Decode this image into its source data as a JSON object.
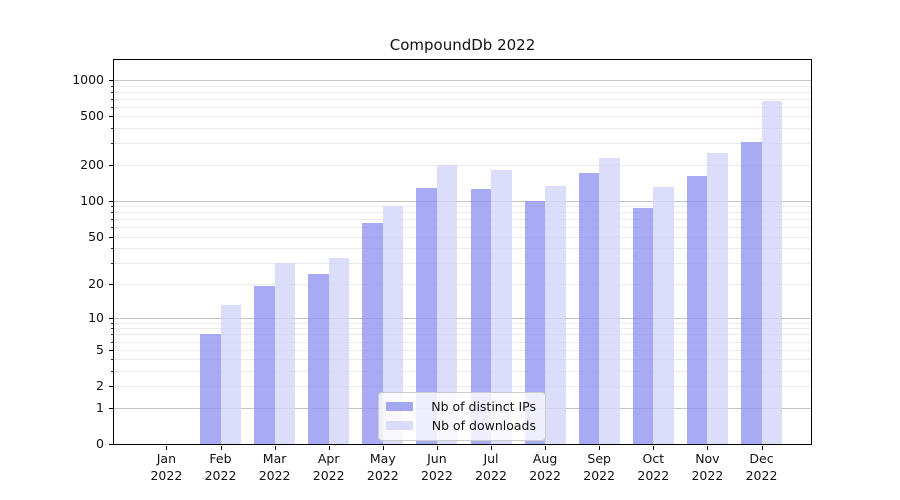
{
  "title": "CompoundDb 2022",
  "colors": {
    "distinct_ips_bar": "rgba(146,150,240,0.8)",
    "downloads_bar": "rgba(211,213,250,0.8)",
    "distinct_ips_hex": "#a3a6f0",
    "downloads_hex": "#dadcf9",
    "major_grid": "#c3c3c3",
    "minor_grid": "#ebebeb",
    "axis": "#000000",
    "text": "#111111"
  },
  "legend": {
    "position": "lower center",
    "items": [
      {
        "label": "Nb of distinct IPs",
        "series": "distinct_ips"
      },
      {
        "label": "Nb of downloads",
        "series": "downloads"
      }
    ]
  },
  "y_axis": {
    "scale": "log1p",
    "tick_values": [
      1000,
      500,
      200,
      100,
      50,
      20,
      10,
      5,
      2,
      1,
      0
    ],
    "major_values": [
      1,
      10,
      100,
      1000
    ],
    "minor_values": [
      2,
      3,
      4,
      5,
      6,
      7,
      8,
      9,
      20,
      30,
      40,
      50,
      60,
      70,
      80,
      90,
      200,
      300,
      400,
      500,
      600,
      700,
      800,
      900
    ],
    "max_value": 1460
  },
  "x_axis": {
    "months": [
      "Jan",
      "Feb",
      "Mar",
      "Apr",
      "May",
      "Jun",
      "Jul",
      "Aug",
      "Sep",
      "Oct",
      "Nov",
      "Dec"
    ],
    "year": "2022"
  },
  "chart_data": {
    "type": "bar",
    "title": "CompoundDb 2022",
    "categories": [
      "Jan 2022",
      "Feb 2022",
      "Mar 2022",
      "Apr 2022",
      "May 2022",
      "Jun 2022",
      "Jul 2022",
      "Aug 2022",
      "Sep 2022",
      "Oct 2022",
      "Nov 2022",
      "Dec 2022"
    ],
    "series": [
      {
        "name": "Nb of distinct IPs",
        "values": [
          0,
          7,
          19,
          24,
          65,
          128,
          125,
          100,
          170,
          88,
          160,
          310
        ]
      },
      {
        "name": "Nb of downloads",
        "values": [
          0,
          13,
          30,
          33,
          90,
          200,
          180,
          132,
          225,
          130,
          250,
          670
        ]
      }
    ],
    "yscale": "log1p",
    "y_ticks": [
      0,
      1,
      2,
      5,
      10,
      20,
      50,
      100,
      200,
      500,
      1000
    ],
    "ylim": [
      0,
      1460
    ],
    "grid": true,
    "legend_position": "lower center"
  }
}
